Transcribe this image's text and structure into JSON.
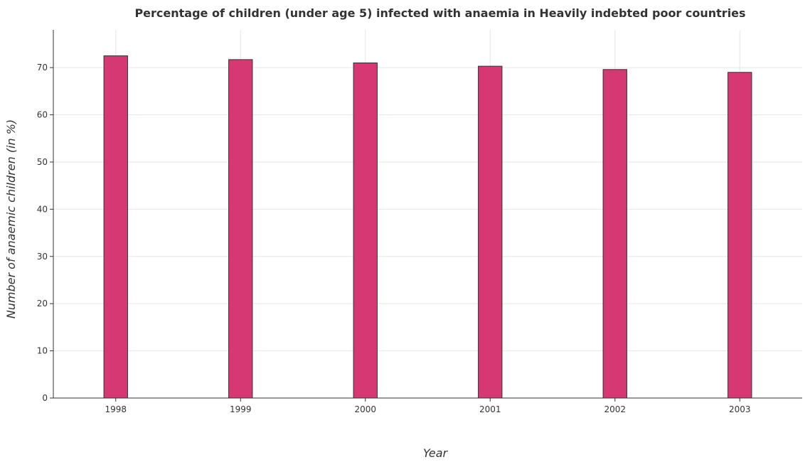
{
  "colors": {
    "bar_fill": "#d63874",
    "bar_stroke": "#333333",
    "grid": "#e6e6e6",
    "text": "#333333"
  },
  "chart_data": {
    "type": "bar",
    "title": "Percentage of children (under age 5) infected with anaemia in Heavily indebted poor countries",
    "xlabel": "Year",
    "ylabel": "Number of anaemic children (in %)",
    "categories": [
      "1998",
      "1999",
      "2000",
      "2001",
      "2002",
      "2003"
    ],
    "values": [
      72.5,
      71.7,
      71.0,
      70.3,
      69.6,
      69.0
    ],
    "ylim": [
      0,
      78
    ],
    "yticks": [
      0,
      10,
      20,
      30,
      40,
      50,
      60,
      70
    ],
    "ytick_labels": [
      "0",
      "10",
      "20",
      "30",
      "40",
      "50",
      "60",
      "70"
    ],
    "grid": true,
    "legend": "none"
  }
}
